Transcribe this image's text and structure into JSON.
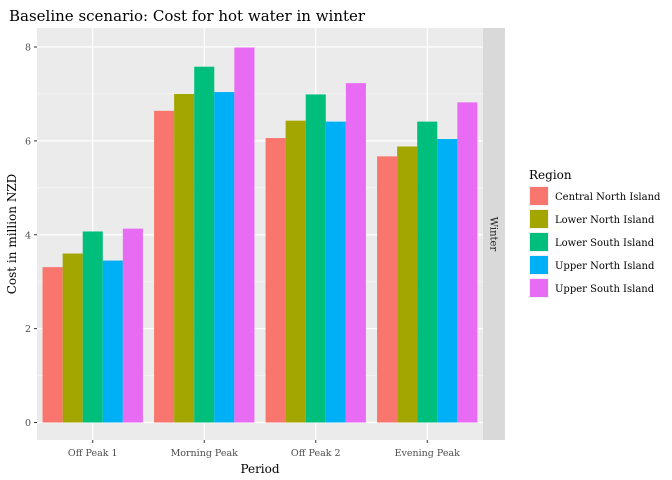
{
  "chart_data": {
    "type": "bar",
    "title": "Baseline scenario: Cost for hot water in winter",
    "xlabel": "Period",
    "ylabel": "Cost in million NZD",
    "facet_label": "Winter",
    "categories": [
      "Off Peak 1",
      "Morning Peak",
      "Off Peak 2",
      "Evening Peak"
    ],
    "ylim": [
      0,
      8.4
    ],
    "yticks": [
      0,
      2,
      4,
      6,
      8
    ],
    "grid": true,
    "legend": {
      "title": "Region",
      "position": "right"
    },
    "series": [
      {
        "name": "Central North Island",
        "color": "#F8766D",
        "values": [
          3.31,
          6.64,
          6.06,
          5.67
        ]
      },
      {
        "name": "Lower North Island",
        "color": "#A3A500",
        "values": [
          3.6,
          7.0,
          6.43,
          5.88
        ]
      },
      {
        "name": "Lower South Island",
        "color": "#00BF7D",
        "values": [
          4.07,
          7.58,
          6.99,
          6.41
        ]
      },
      {
        "name": "Upper North Island",
        "color": "#00B0F6",
        "values": [
          3.45,
          7.04,
          6.41,
          6.04
        ]
      },
      {
        "name": "Upper South Island",
        "color": "#E76BF3",
        "values": [
          4.13,
          7.99,
          7.23,
          6.82
        ]
      }
    ]
  }
}
